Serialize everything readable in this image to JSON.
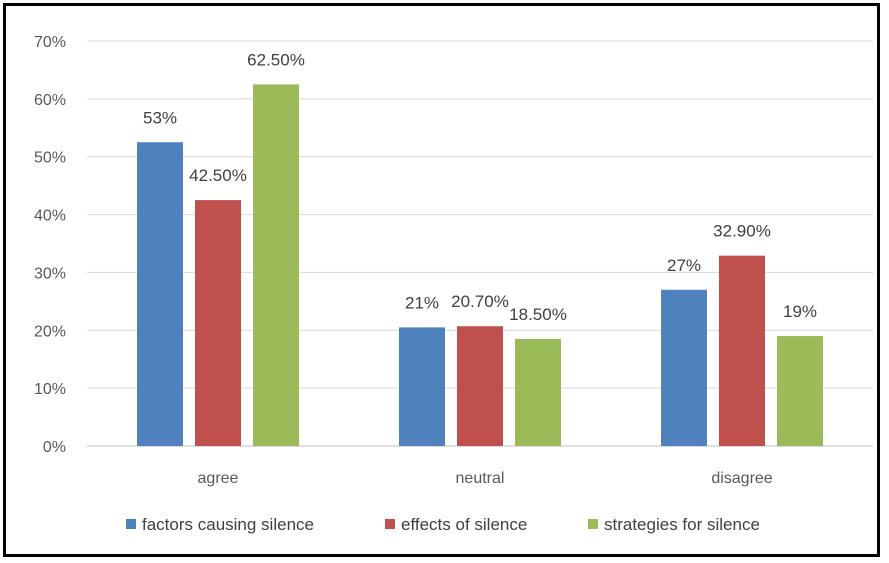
{
  "chart_data": {
    "type": "bar",
    "categories": [
      "agree",
      "neutral",
      "disagree"
    ],
    "series": [
      {
        "name": "factors causing silence",
        "color": "#4f81bd",
        "values": [
          52.5,
          20.5,
          27
        ],
        "labels": [
          "53%",
          "21%",
          "27%"
        ]
      },
      {
        "name": "effects of silence",
        "color": "#c0504d",
        "values": [
          42.5,
          20.7,
          32.9
        ],
        "labels": [
          "42.50%",
          "20.70%",
          "32.90%"
        ]
      },
      {
        "name": "strategies for silence",
        "color": "#9bbb59",
        "values": [
          62.5,
          18.5,
          19
        ],
        "labels": [
          "62.50%",
          "18.50%",
          "19%"
        ]
      }
    ],
    "ylim": [
      0,
      70
    ],
    "yticks": [
      "0%",
      "10%",
      "20%",
      "30%",
      "40%",
      "50%",
      "60%",
      "70%"
    ],
    "grid": true,
    "legend": "bottom"
  }
}
